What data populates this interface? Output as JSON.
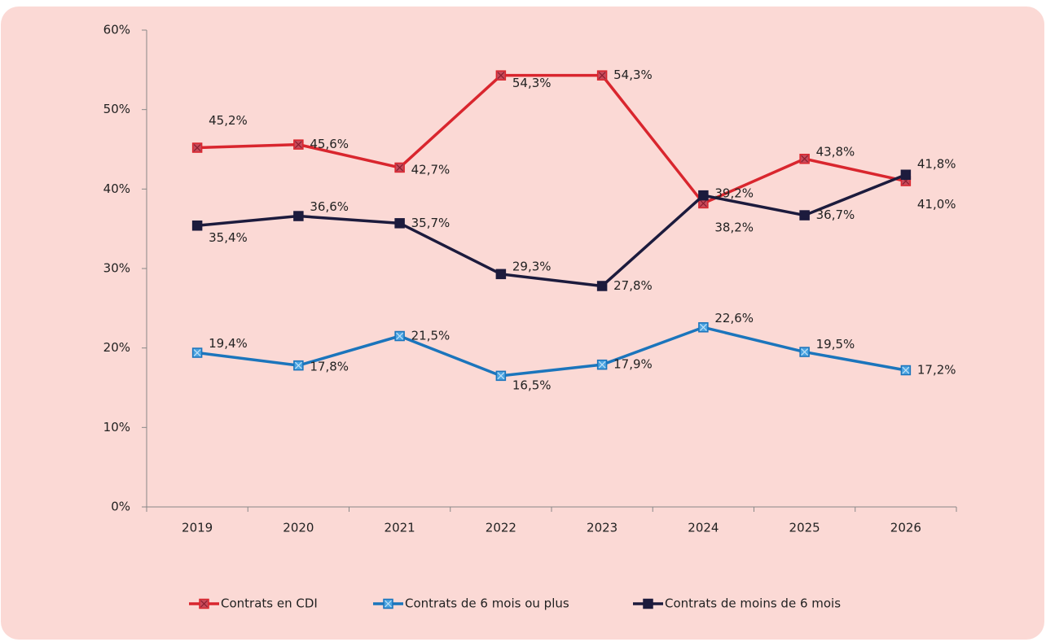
{
  "chart_data": {
    "type": "line",
    "categories": [
      "2019",
      "2020",
      "2021",
      "2022",
      "2023",
      "2024",
      "2025",
      "2026"
    ],
    "ylim": [
      0,
      60
    ],
    "yticks": [
      {
        "value": 0,
        "label": "0%"
      },
      {
        "value": 10,
        "label": "10%"
      },
      {
        "value": 20,
        "label": "20%"
      },
      {
        "value": 30,
        "label": "30%"
      },
      {
        "value": 40,
        "label": "40%"
      },
      {
        "value": 50,
        "label": "50%"
      },
      {
        "value": 60,
        "label": "60%"
      }
    ],
    "legend": "bottom",
    "series": [
      {
        "name": "Contrats en CDI",
        "color": "#d9262e",
        "values": [
          45.2,
          45.6,
          42.7,
          54.3,
          54.3,
          38.2,
          43.8,
          41.0
        ],
        "value_labels": [
          "45,2%",
          "45,6%",
          "42,7%",
          "54,3%",
          "54,3%",
          "38,2%",
          "43,8%",
          "41,0%"
        ]
      },
      {
        "name": "Contrats de 6 mois ou plus",
        "color": "#1b75bc",
        "values": [
          19.4,
          17.8,
          21.5,
          16.5,
          17.9,
          22.6,
          19.5,
          17.2
        ],
        "value_labels": [
          "19,4%",
          "17,8%",
          "21,5%",
          "16,5%",
          "17,9%",
          "22,6%",
          "19,5%",
          "17,2%"
        ]
      },
      {
        "name": "Contrats de moins de 6 mois",
        "color": "#1c1b3d",
        "values": [
          35.4,
          36.6,
          35.7,
          29.3,
          27.8,
          39.2,
          36.7,
          41.8
        ],
        "value_labels": [
          "35,4%",
          "36,6%",
          "35,7%",
          "29,3%",
          "27,8%",
          "39,2%",
          "36,7%",
          "41,8%"
        ]
      }
    ]
  }
}
